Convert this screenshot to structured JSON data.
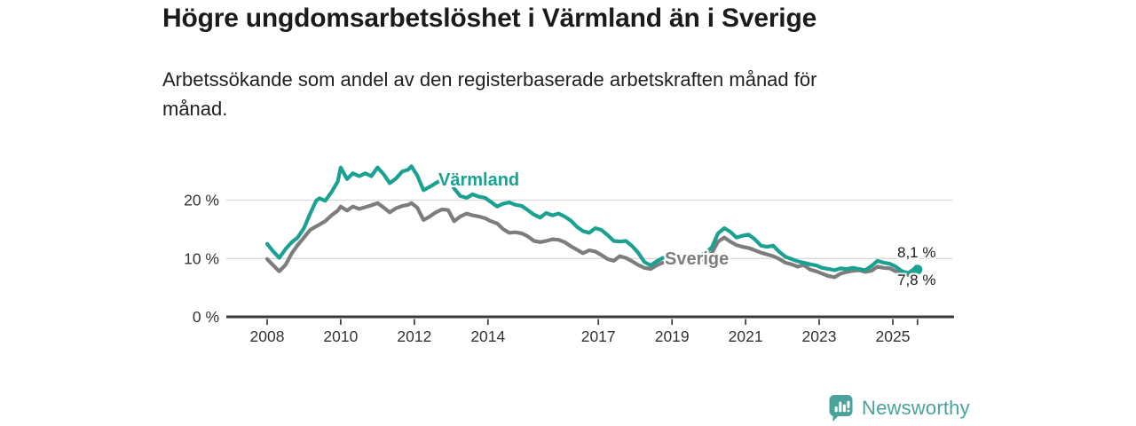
{
  "header": {
    "title": "Högre ungdomsarbetslöshet i Värmland än i Sverige",
    "subtitle_line1": "Arbetssökande som andel av den registerbaserade arbetskraften månad för",
    "subtitle_line2": "månad."
  },
  "footer": {
    "brand": "Newsworthy",
    "brand_color": "#4aa39b"
  },
  "chart_data": {
    "type": "line",
    "title": "Högre ungdomsarbetslöshet i Värmland än i Sverige",
    "subtitle": "Arbetssökande som andel av den registerbaserade arbetskraften månad för månad.",
    "unit": "%",
    "grid": true,
    "legend_position": "inline-labels",
    "ylim": [
      0,
      27
    ],
    "xlim": [
      2007.9,
      2026.7
    ],
    "colors": {
      "grid": "#d9d9d9",
      "axis": "#3a3a3a",
      "axis_text": "#333333"
    },
    "y_ticks": [
      {
        "value": 0,
        "label": "0 %"
      },
      {
        "value": 10,
        "label": "10 %"
      },
      {
        "value": 20,
        "label": "20 %"
      }
    ],
    "x_ticks": [
      {
        "value": 2008,
        "label": "2008"
      },
      {
        "value": 2010,
        "label": "2010"
      },
      {
        "value": 2012,
        "label": "2012"
      },
      {
        "value": 2014,
        "label": "2014"
      },
      {
        "value": 2017,
        "label": "2017"
      },
      {
        "value": 2019,
        "label": "2019"
      },
      {
        "value": 2021,
        "label": "2021"
      },
      {
        "value": 2023,
        "label": "2023"
      },
      {
        "value": 2025,
        "label": "2025"
      }
    ],
    "x": [
      2008.0,
      2008.17,
      2008.33,
      2008.5,
      2008.67,
      2008.83,
      2009.0,
      2009.17,
      2009.33,
      2009.42,
      2009.58,
      2009.75,
      2009.92,
      2010.0,
      2010.17,
      2010.33,
      2010.5,
      2010.67,
      2010.83,
      2011.0,
      2011.17,
      2011.33,
      2011.5,
      2011.67,
      2011.83,
      2011.92,
      2012.08,
      2012.25,
      2012.42,
      2012.58,
      2012.75,
      2012.92,
      2013.08,
      2013.25,
      2013.42,
      2013.58,
      2013.75,
      2013.92,
      2014.08,
      2014.25,
      2014.42,
      2014.58,
      2014.75,
      2014.92,
      2015.08,
      2015.25,
      2015.42,
      2015.58,
      2015.75,
      2015.92,
      2016.08,
      2016.25,
      2016.42,
      2016.58,
      2016.75,
      2016.92,
      2017.08,
      2017.25,
      2017.42,
      2017.58,
      2017.75,
      2017.92,
      2018.08,
      2018.25,
      2018.42,
      2018.58,
      2018.75,
      2018.92,
      2019.08,
      2019.25,
      2019.42,
      2019.58,
      2019.75,
      2019.92,
      2020.08,
      2020.25,
      2020.42,
      2020.58,
      2020.75,
      2020.92,
      2021.08,
      2021.25,
      2021.42,
      2021.58,
      2021.75,
      2021.92,
      2022.08,
      2022.25,
      2022.42,
      2022.58,
      2022.75,
      2022.92,
      2023.08,
      2023.25,
      2023.42,
      2023.58,
      2023.75,
      2023.92,
      2024.08,
      2024.25,
      2024.42,
      2024.58,
      2024.75,
      2024.92,
      2025.08,
      2025.25,
      2025.42,
      2025.58,
      2025.67
    ],
    "series": [
      {
        "name": "Värmland",
        "color": "#1aa191",
        "end_label": "8,1 %",
        "end_value": 8.1,
        "values": [
          12.5,
          11.2,
          10.1,
          11.6,
          12.8,
          13.6,
          15.2,
          17.7,
          19.9,
          20.3,
          19.9,
          21.4,
          23.2,
          25.6,
          23.6,
          24.6,
          24.1,
          24.6,
          24.1,
          25.6,
          24.4,
          22.9,
          23.7,
          24.9,
          25.2,
          25.8,
          24.2,
          21.7,
          22.3,
          22.9,
          23.5,
          24.0,
          22.0,
          20.7,
          20.4,
          21.0,
          20.6,
          20.4,
          19.7,
          18.9,
          19.4,
          19.6,
          19.2,
          19.0,
          18.3,
          17.5,
          17.0,
          17.8,
          17.4,
          17.7,
          17.2,
          16.5,
          15.4,
          14.7,
          14.4,
          15.2,
          14.9,
          14.0,
          13.0,
          12.9,
          13.0,
          12.1,
          11.0,
          9.4,
          8.8,
          9.5,
          10.1,
          9.9,
          10.0,
          10.2,
          10.0,
          10.3,
          10.5,
          11.0,
          11.9,
          14.3,
          15.2,
          14.6,
          13.6,
          13.9,
          14.1,
          13.3,
          12.2,
          12.0,
          12.2,
          11.1,
          10.3,
          9.9,
          9.5,
          9.3,
          9.0,
          8.8,
          8.4,
          8.2,
          8.0,
          8.3,
          8.2,
          8.4,
          8.2,
          8.0,
          8.7,
          9.6,
          9.3,
          9.1,
          8.6,
          7.8,
          7.5,
          8.2,
          8.1
        ]
      },
      {
        "name": "Sverige",
        "color": "#7d7d7d",
        "end_label": "7,8 %",
        "end_value": 7.8,
        "values": [
          9.9,
          8.8,
          7.8,
          8.9,
          10.9,
          12.3,
          13.6,
          14.9,
          15.5,
          15.8,
          16.4,
          17.4,
          18.2,
          18.9,
          18.2,
          18.9,
          18.5,
          18.8,
          19.1,
          19.5,
          18.7,
          17.9,
          18.6,
          19.0,
          19.2,
          19.5,
          18.7,
          16.6,
          17.2,
          17.9,
          18.4,
          18.3,
          16.4,
          17.2,
          17.7,
          17.4,
          17.2,
          16.9,
          16.4,
          16.0,
          15.0,
          14.4,
          14.5,
          14.3,
          13.8,
          13.0,
          12.8,
          13.0,
          13.3,
          13.2,
          12.8,
          12.1,
          11.5,
          10.9,
          11.4,
          11.2,
          10.6,
          9.9,
          9.6,
          10.4,
          10.1,
          9.5,
          8.9,
          8.4,
          8.2,
          8.8,
          9.3,
          9.2,
          9.3,
          9.5,
          9.3,
          9.5,
          9.7,
          10.1,
          10.9,
          12.9,
          13.6,
          12.9,
          12.3,
          12.0,
          11.8,
          11.4,
          11.0,
          10.7,
          10.4,
          9.9,
          9.3,
          9.0,
          8.6,
          8.9,
          8.1,
          7.8,
          7.4,
          7.0,
          6.8,
          7.4,
          7.7,
          7.9,
          8.0,
          7.7,
          7.9,
          8.6,
          8.4,
          8.3,
          7.8,
          7.4,
          7.2,
          7.6,
          7.8
        ]
      }
    ]
  }
}
